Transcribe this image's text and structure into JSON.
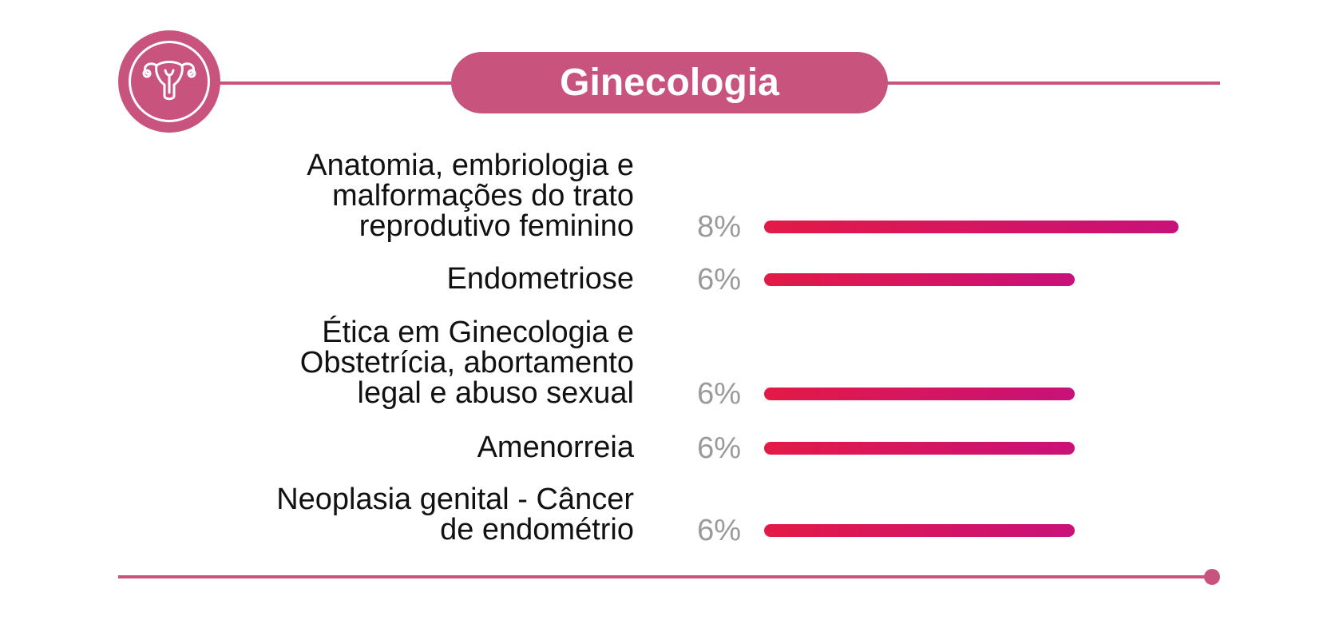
{
  "title": "Ginecologia",
  "icon": "uterus-icon",
  "colors": {
    "accent": "#c8547e",
    "bar_start": "#e31a46",
    "bar_end": "#c8117a",
    "percent_text": "#9a9a9a"
  },
  "chart_data": {
    "type": "bar",
    "orientation": "horizontal",
    "categories": [
      "Anatomia, embriologia e\nmalformações do trato\nreprodutivo feminino",
      "Endometriose",
      "Ética em Ginecologia e\nObstetrícia, abortamento\nlegal e abuso sexual",
      "Amenorreia",
      "Neoplasia genital - Câncer\nde endométrio"
    ],
    "values": [
      8,
      6,
      6,
      6,
      6
    ],
    "value_labels": [
      "8%",
      "6%",
      "6%",
      "6%",
      "6%"
    ],
    "xlim": [
      0,
      8
    ],
    "grid": false,
    "legend": "none"
  }
}
